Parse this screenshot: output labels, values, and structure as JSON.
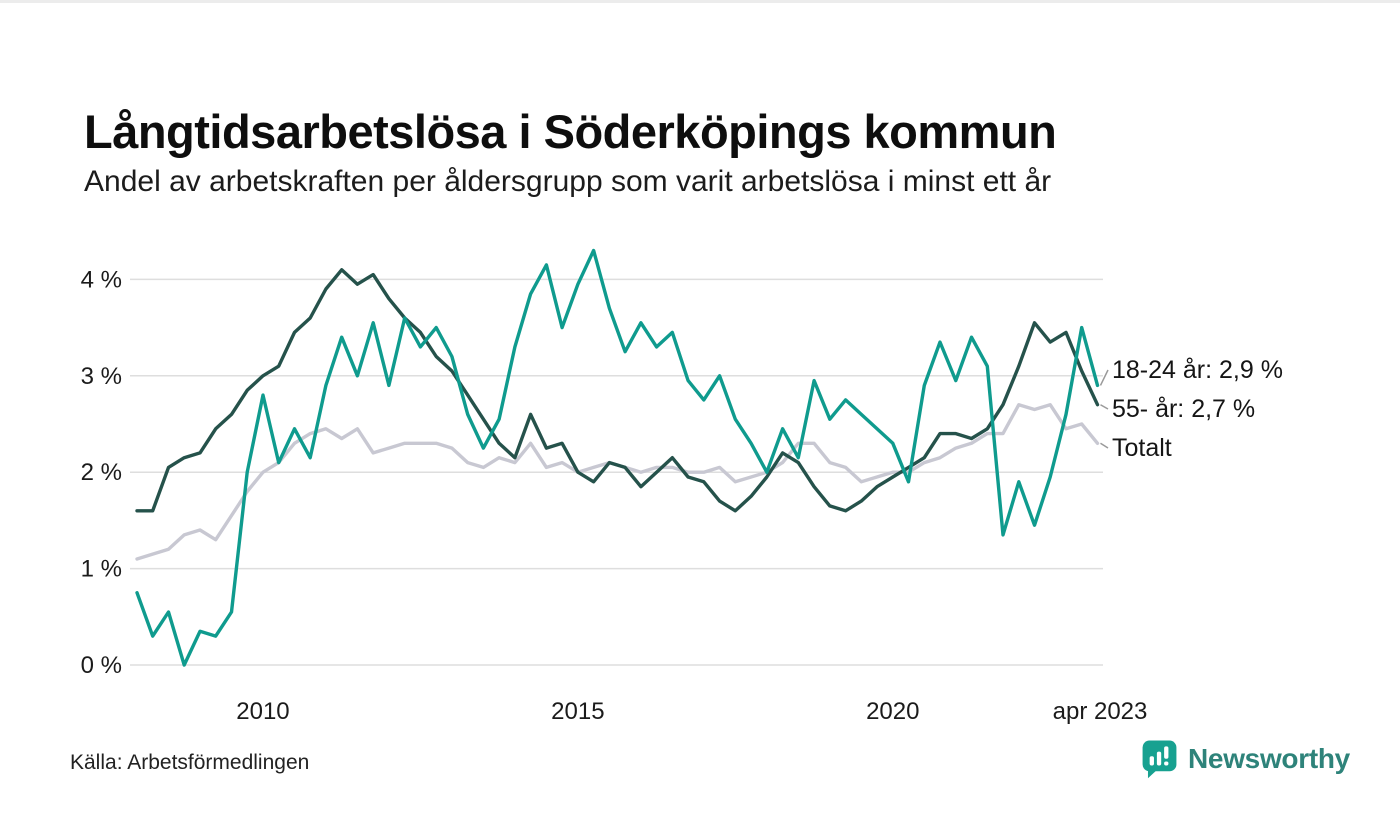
{
  "page": {
    "title": "Långtidsarbetslösa i Söderköpings kommun",
    "subtitle": "Andel av arbetskraften per åldersgrupp som varit arbetslösa i minst ett år",
    "source": "Källa: Arbetsförmedlingen",
    "brand": {
      "name": "Newsworthy",
      "text_color": "#2e837a",
      "icon_color": "#17a190",
      "icon": "bar-chart-speech-bubble-icon"
    }
  },
  "chart_data": {
    "type": "line",
    "title": "Långtidsarbetslösa i Söderköpings kommun",
    "subtitle": "Andel av arbetskraften per åldersgrupp som varit arbetslösa i minst ett år",
    "xlabel": "",
    "ylabel": "",
    "xlim": [
      2008.0,
      2023.33
    ],
    "ylim": [
      0,
      4.45
    ],
    "grid": "horizontal",
    "legend_position": "right-end-labels",
    "xticks": {
      "values": [
        2010,
        2015,
        2020,
        2023.29
      ],
      "labels": [
        "2010",
        "2015",
        "2020",
        "apr 2023"
      ]
    },
    "yticks": {
      "values": [
        0,
        1,
        2,
        3,
        4
      ],
      "labels": [
        "0 %",
        "1 %",
        "2 %",
        "3 %",
        "4 %"
      ]
    },
    "x": [
      2008.0,
      2008.25,
      2008.5,
      2008.75,
      2009.0,
      2009.25,
      2009.5,
      2009.75,
      2010.0,
      2010.25,
      2010.5,
      2010.75,
      2011.0,
      2011.25,
      2011.5,
      2011.75,
      2012.0,
      2012.25,
      2012.5,
      2012.75,
      2013.0,
      2013.25,
      2013.5,
      2013.75,
      2014.0,
      2014.25,
      2014.5,
      2014.75,
      2015.0,
      2015.25,
      2015.5,
      2015.75,
      2016.0,
      2016.25,
      2016.5,
      2016.75,
      2017.0,
      2017.25,
      2017.5,
      2017.75,
      2018.0,
      2018.25,
      2018.5,
      2018.75,
      2019.0,
      2019.25,
      2019.5,
      2019.75,
      2020.0,
      2020.25,
      2020.5,
      2020.75,
      2021.0,
      2021.25,
      2021.5,
      2021.75,
      2022.0,
      2022.25,
      2022.5,
      2022.75,
      2023.0,
      2023.25
    ],
    "series": [
      {
        "name": "18-24 år",
        "color": "#0f9b8e",
        "end_label": "18-24 år: 2,9 %",
        "last_value": "2,9 %",
        "values": [
          0.75,
          0.3,
          0.55,
          0.0,
          0.35,
          0.3,
          0.55,
          2.0,
          2.8,
          2.1,
          2.45,
          2.15,
          2.9,
          3.4,
          3.0,
          3.55,
          2.9,
          3.6,
          3.3,
          3.5,
          3.2,
          2.6,
          2.25,
          2.55,
          3.3,
          3.85,
          4.15,
          3.5,
          3.95,
          4.3,
          3.7,
          3.25,
          3.55,
          3.3,
          3.45,
          2.95,
          2.75,
          3.0,
          2.55,
          2.3,
          2.0,
          2.45,
          2.15,
          2.95,
          2.55,
          2.75,
          2.6,
          2.45,
          2.3,
          1.9,
          2.9,
          3.35,
          2.95,
          3.4,
          3.1,
          1.35,
          1.9,
          1.45,
          1.95,
          2.6,
          3.5,
          2.9
        ]
      },
      {
        "name": "55- år",
        "color": "#25524b",
        "end_label": "55- år: 2,7 %",
        "last_value": "2,7 %",
        "values": [
          1.6,
          1.6,
          2.05,
          2.15,
          2.2,
          2.45,
          2.6,
          2.85,
          3.0,
          3.1,
          3.45,
          3.6,
          3.9,
          4.1,
          3.95,
          4.05,
          3.8,
          3.6,
          3.45,
          3.2,
          3.05,
          2.8,
          2.55,
          2.3,
          2.15,
          2.6,
          2.25,
          2.3,
          2.0,
          1.9,
          2.1,
          2.05,
          1.85,
          2.0,
          2.15,
          1.95,
          1.9,
          1.7,
          1.6,
          1.75,
          1.95,
          2.2,
          2.1,
          1.85,
          1.65,
          1.6,
          1.7,
          1.85,
          1.95,
          2.05,
          2.15,
          2.4,
          2.4,
          2.35,
          2.45,
          2.7,
          3.1,
          3.55,
          3.35,
          3.45,
          3.05,
          2.7
        ]
      },
      {
        "name": "Totalt",
        "color": "#c8c8d2",
        "end_label": "Totalt",
        "last_value": "2,3 %",
        "values": [
          1.1,
          1.15,
          1.2,
          1.35,
          1.4,
          1.3,
          1.55,
          1.8,
          2.0,
          2.1,
          2.3,
          2.4,
          2.45,
          2.35,
          2.45,
          2.2,
          2.25,
          2.3,
          2.3,
          2.3,
          2.25,
          2.1,
          2.05,
          2.15,
          2.1,
          2.3,
          2.05,
          2.1,
          2.0,
          2.05,
          2.1,
          2.05,
          2.0,
          2.05,
          2.05,
          2.0,
          2.0,
          2.05,
          1.9,
          1.95,
          2.0,
          2.1,
          2.3,
          2.3,
          2.1,
          2.05,
          1.9,
          1.95,
          2.0,
          2.0,
          2.1,
          2.15,
          2.25,
          2.3,
          2.4,
          2.4,
          2.7,
          2.65,
          2.7,
          2.45,
          2.5,
          2.3
        ]
      }
    ]
  }
}
